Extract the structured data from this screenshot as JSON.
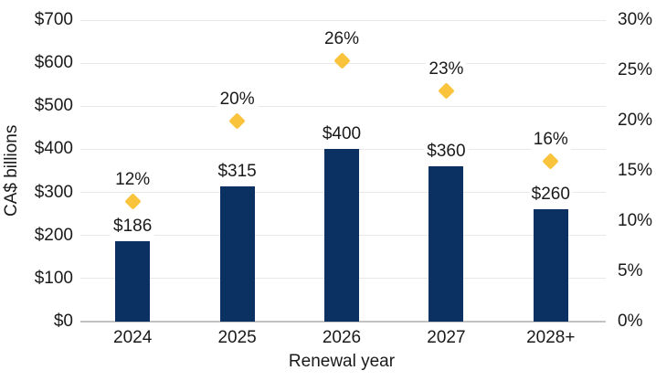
{
  "chart_data": {
    "type": "bar",
    "categories": [
      "2024",
      "2025",
      "2026",
      "2027",
      "2028+"
    ],
    "series": [
      {
        "name": "bars",
        "type": "bar",
        "axis": "left",
        "values": [
          186,
          315,
          400,
          360,
          260
        ],
        "labels": [
          "$186",
          "$315",
          "$400",
          "$360",
          "$260"
        ],
        "color": "#0b3162"
      },
      {
        "name": "percent_markers",
        "type": "scatter",
        "marker": "diamond",
        "axis": "right",
        "values": [
          12,
          20,
          26,
          23,
          16
        ],
        "labels": [
          "12%",
          "20%",
          "26%",
          "23%",
          "16%"
        ],
        "color": "#f9c33c"
      }
    ],
    "title": "",
    "xlabel": "Renewal year",
    "ylabel": "CA$ billions",
    "left_axis": {
      "min": 0,
      "max": 700,
      "step": 100,
      "tick_labels": [
        "$0",
        "$100",
        "$200",
        "$300",
        "$400",
        "$500",
        "$600",
        "$700"
      ]
    },
    "right_axis": {
      "min": 0,
      "max": 30,
      "step": 5,
      "tick_labels": [
        "0%",
        "5%",
        "10%",
        "15%",
        "20%",
        "25%",
        "30%"
      ]
    },
    "grid": {
      "horizontal": true,
      "color": "#e8e8e8"
    },
    "axis_line_color": "#c3c3c3",
    "text_color": "#1a1a1a",
    "legend": "none"
  }
}
